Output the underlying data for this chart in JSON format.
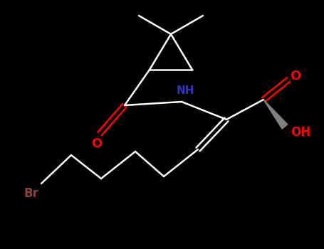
{
  "background_color": "#000000",
  "bond_color": "#ffffff",
  "bond_width": 1.8,
  "atom_colors": {
    "O": "#ff0000",
    "N": "#3333cc",
    "Br": "#8b4040",
    "C": "#ffffff"
  },
  "figsize": [
    4.55,
    3.5
  ],
  "dpi": 100
}
